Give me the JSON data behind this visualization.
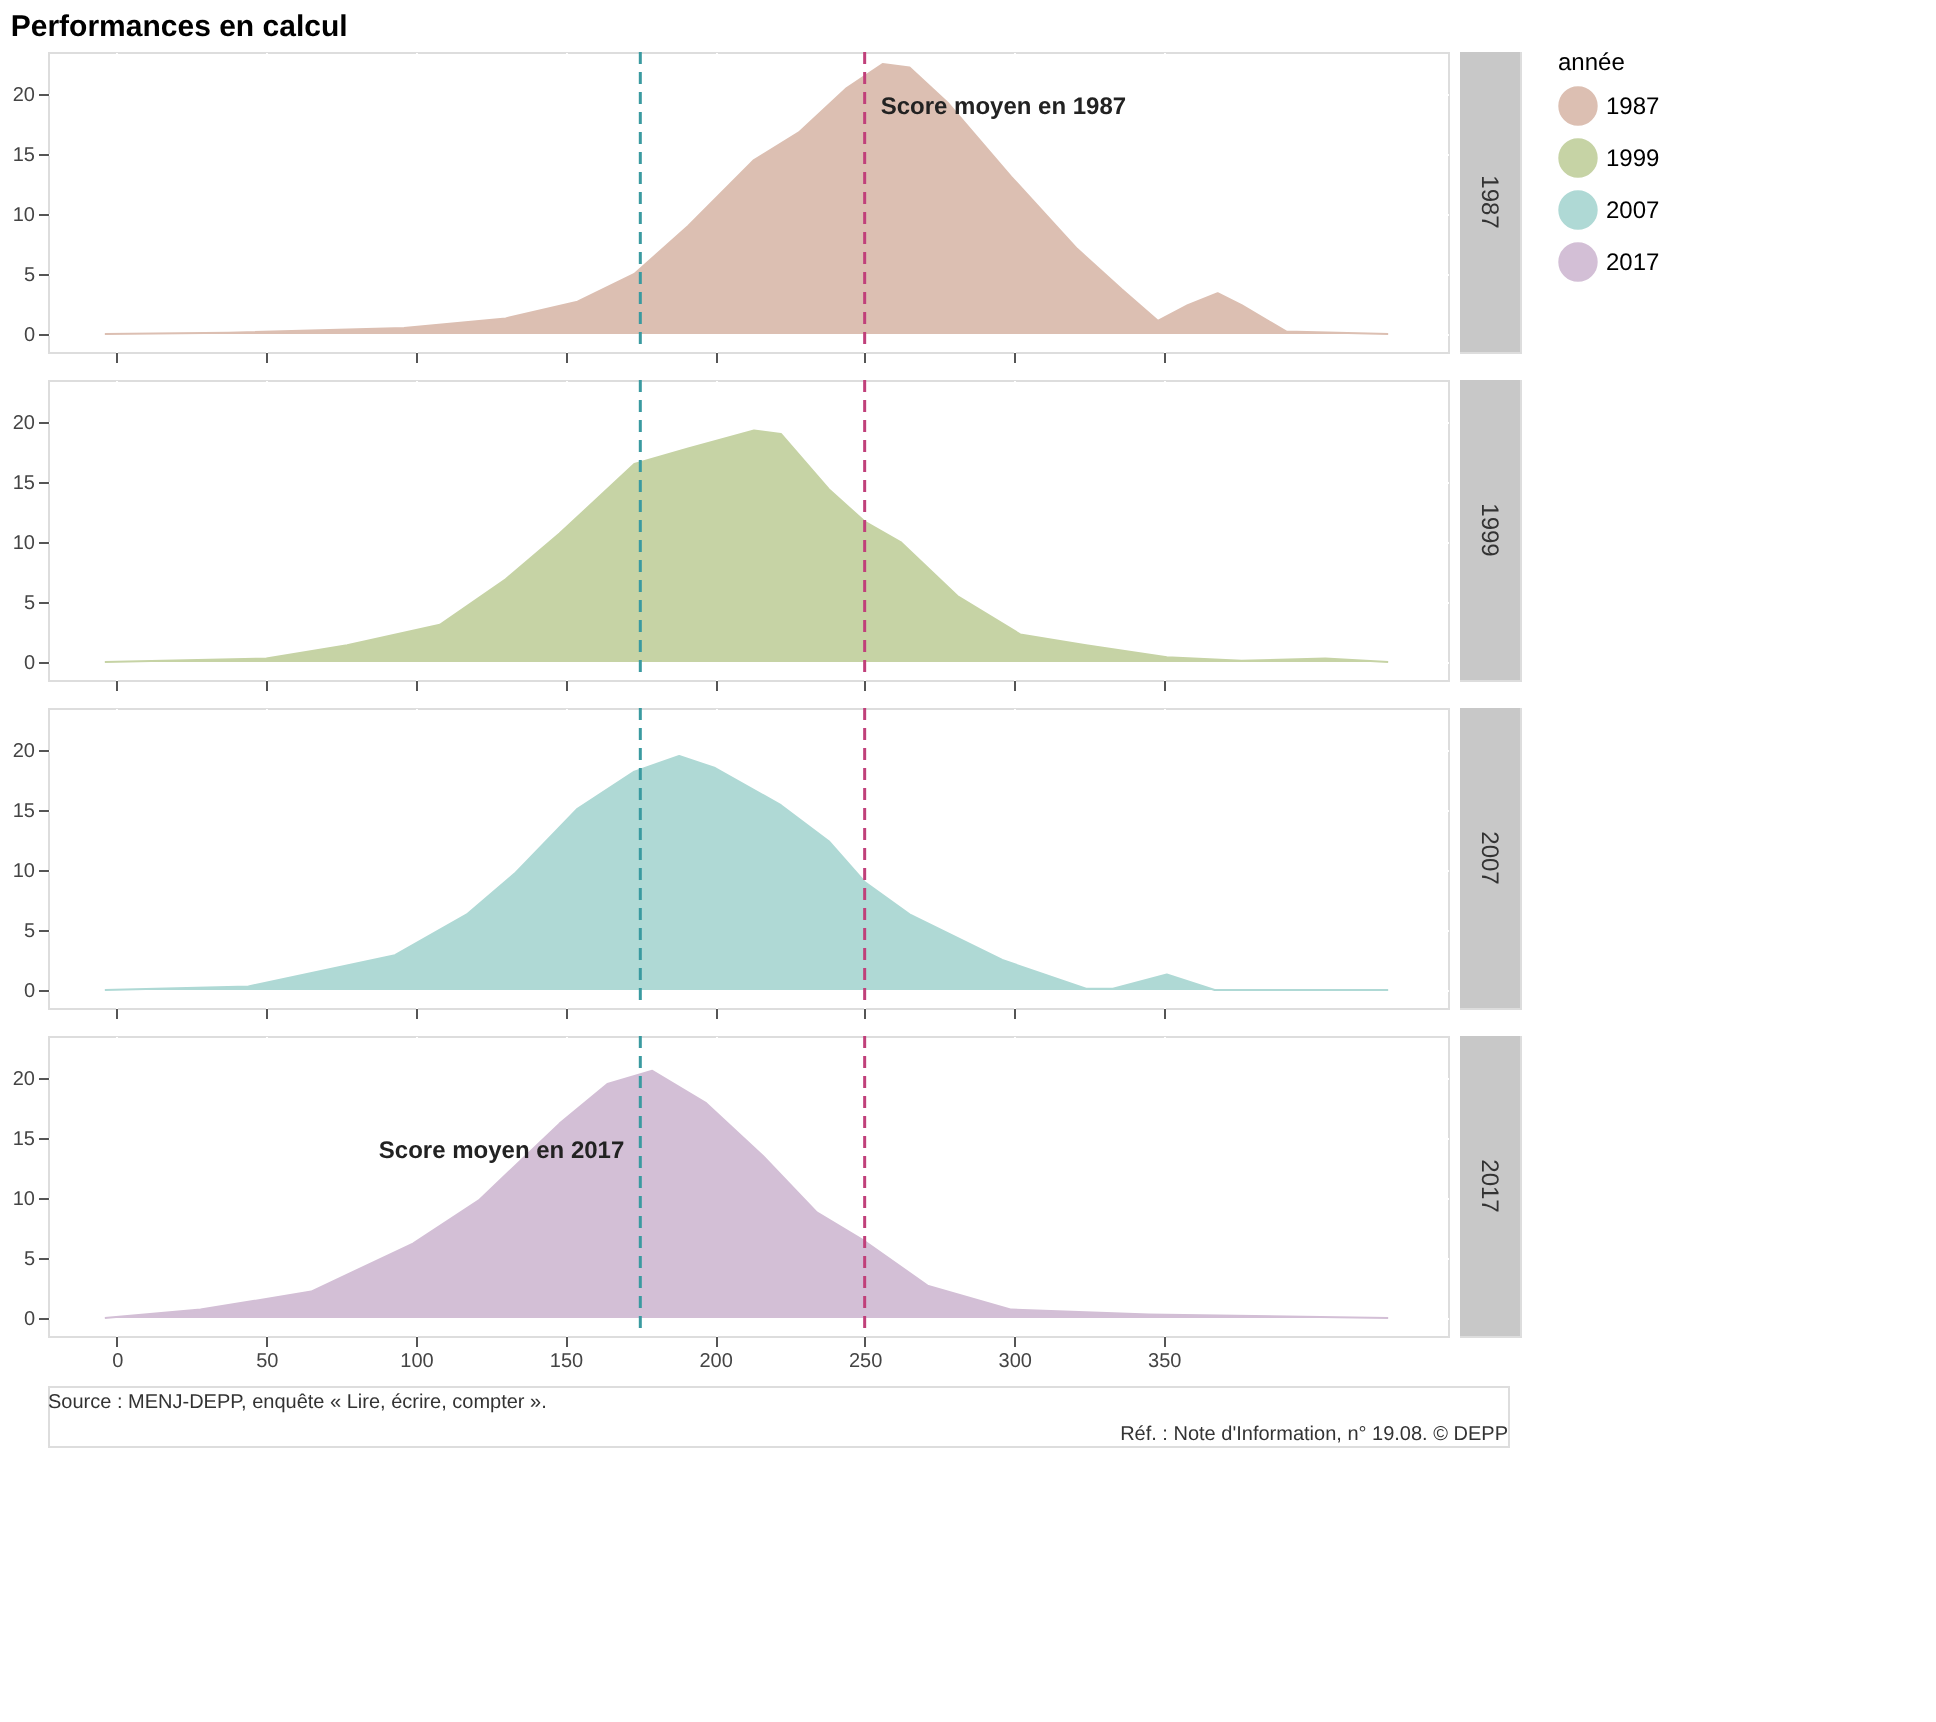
{
  "chart_data": [
    {
      "type": "area",
      "title": "Performances en calcul",
      "legend": "right",
      "legend_title": "année",
      "grid": true,
      "tick_labels": "y",
      "xlim": [
        -23,
        445
      ],
      "xticks": [
        0,
        50,
        100,
        150,
        200,
        250,
        300,
        350
      ],
      "ylim": [
        -1.5,
        23.5
      ],
      "yticks": [
        0,
        5,
        10,
        15,
        20
      ],
      "series": [
        {
          "name": "1987",
          "color": "#dcbfb2",
          "x": [
            -4,
            37.5,
            96,
            130,
            154,
            173,
            191,
            213,
            228,
            244,
            256,
            265,
            278,
            299,
            321,
            336,
            348,
            358,
            368,
            376,
            391,
            425
          ],
          "values": [
            0,
            0.1,
            0.5,
            1.3,
            2.7,
            5,
            9,
            14.5,
            16.8,
            20.5,
            22.5,
            22.2,
            19.2,
            13.1,
            7.1,
            3.7,
            1.1,
            2.4,
            3.4,
            2.4,
            0.2,
            0
          ]
        }
      ],
      "ref_lines": [
        {
          "axis": "x",
          "value": 175,
          "color": "#3a9aa0",
          "line_style": "dashed"
        },
        {
          "axis": "x",
          "value": 250,
          "color": "#c0407a",
          "line_style": "dashed"
        }
      ],
      "annotations": [
        {
          "text": "Score moyen en 1987",
          "x": 250,
          "y": 19
        }
      ]
    },
    {
      "type": "area",
      "grid": true,
      "tick_labels": "y",
      "xlim": [
        -23,
        445
      ],
      "xticks": [
        0,
        50,
        100,
        150,
        200,
        250,
        300,
        350
      ],
      "ylim": [
        -1.5,
        23.5
      ],
      "yticks": [
        0,
        5,
        10,
        15,
        20
      ],
      "series": [
        {
          "name": "1999",
          "color": "#c6d3a5",
          "x": [
            -4,
            50,
            77,
            108,
            130,
            148,
            173,
            191,
            213,
            222,
            238,
            250,
            262,
            281,
            302,
            324,
            351,
            376,
            404,
            425
          ],
          "values": [
            0,
            0.3,
            1.4,
            3.1,
            6.9,
            10.7,
            16.5,
            17.8,
            19.3,
            19,
            14.4,
            11.7,
            10,
            5.5,
            2.3,
            1.4,
            0.4,
            0.1,
            0.3,
            0
          ]
        }
      ],
      "ref_lines": [
        {
          "axis": "x",
          "value": 175,
          "color": "#3a9aa0",
          "line_style": "dashed"
        },
        {
          "axis": "x",
          "value": 250,
          "color": "#c0407a",
          "line_style": "dashed"
        }
      ]
    },
    {
      "type": "area",
      "grid": true,
      "tick_labels": "y",
      "xlim": [
        -23,
        445
      ],
      "xticks": [
        0,
        50,
        100,
        150,
        200,
        250,
        300,
        350
      ],
      "ylim": [
        -1.5,
        23.5
      ],
      "yticks": [
        0,
        5,
        10,
        15,
        20
      ],
      "series": [
        {
          "name": "2007",
          "color": "#afd9d5",
          "x": [
            -4,
            44,
            93,
            117,
            133,
            154,
            173,
            188,
            200,
            222,
            238,
            250,
            265,
            296,
            324,
            333,
            351,
            367,
            425
          ],
          "values": [
            0,
            0.3,
            2.9,
            6.3,
            9.7,
            15.1,
            18.2,
            19.5,
            18.5,
            15.4,
            12.4,
            9,
            6.3,
            2.5,
            0.1,
            0.1,
            1.3,
            0,
            0
          ]
        }
      ],
      "ref_lines": [
        {
          "axis": "x",
          "value": 175,
          "color": "#3a9aa0",
          "line_style": "dashed"
        },
        {
          "axis": "x",
          "value": 250,
          "color": "#c0407a",
          "line_style": "dashed"
        }
      ]
    },
    {
      "type": "area",
      "grid": true,
      "xlim": [
        -23,
        445
      ],
      "xticks": [
        0,
        50,
        100,
        150,
        200,
        250,
        300,
        350
      ],
      "ylim": [
        -1.5,
        23.5
      ],
      "yticks": [
        0,
        5,
        10,
        15,
        20
      ],
      "series": [
        {
          "name": "2017",
          "color": "#d3bfd6",
          "x": [
            -4,
            28,
            65,
            99,
            121,
            148,
            164,
            179,
            197,
            216,
            234,
            250,
            271,
            299,
            345,
            425
          ],
          "values": [
            0,
            0.7,
            2.2,
            6.2,
            9.8,
            16.2,
            19.5,
            20.6,
            17.9,
            13.5,
            8.8,
            6.4,
            2.7,
            0.7,
            0.3,
            0
          ]
        }
      ],
      "ref_lines": [
        {
          "axis": "x",
          "value": 175,
          "color": "#3a9aa0",
          "line_style": "dashed"
        },
        {
          "axis": "x",
          "value": 250,
          "color": "#c0407a",
          "line_style": "dashed"
        }
      ],
      "annotations": [
        {
          "text": "Score moyen en 2017",
          "x": 175,
          "y": 14
        },
        "Source : MENJ-DEPP, enquête « Lire, écrire, compter ».",
        "Réf. : Note d'Information, n° 19.08. © DEPP"
      ]
    }
  ]
}
